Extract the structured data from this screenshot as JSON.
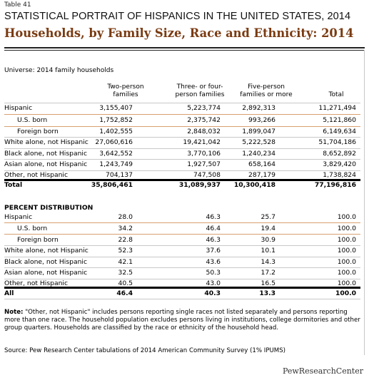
{
  "table_number": "Table 41",
  "supertitle": "STATISTICAL PORTRAIT OF HISPANICS IN THE UNITED STATES, 2014",
  "title": "Households, by Family Size, Race and Ethnicity: 2014",
  "universe": "Universe: 2014 family households",
  "columns": {
    "c1": [
      "Two-person",
      "families"
    ],
    "c2": [
      "Three- or four-",
      "person families"
    ],
    "c3": [
      "Five-person",
      "families or more"
    ],
    "c4": [
      "Total"
    ]
  },
  "counts": [
    {
      "label": "Hispanic",
      "v": [
        "3,155,407",
        "5,223,774",
        "2,892,313",
        "11,271,494"
      ]
    },
    {
      "label": "U.S. born",
      "v": [
        "1,752,852",
        "2,375,742",
        "993,266",
        "5,121,860"
      ]
    },
    {
      "label": "Foreign born",
      "v": [
        "1,402,555",
        "2,848,032",
        "1,899,047",
        "6,149,634"
      ]
    },
    {
      "label": "White alone, not Hispanic",
      "v": [
        "27,060,616",
        "19,421,042",
        "5,222,528",
        "51,704,186"
      ]
    },
    {
      "label": "Black alone, not Hispanic",
      "v": [
        "3,642,552",
        "3,770,106",
        "1,240,234",
        "8,652,892"
      ]
    },
    {
      "label": "Asian alone, not Hispanic",
      "v": [
        "1,243,749",
        "1,927,507",
        "658,164",
        "3,829,420"
      ]
    },
    {
      "label": "Other, not Hispanic",
      "v": [
        "704,137",
        "747,508",
        "287,179",
        "1,738,824"
      ]
    },
    {
      "label": "Total",
      "v": [
        "35,806,461",
        "31,089,937",
        "10,300,418",
        "77,196,816"
      ]
    }
  ],
  "pct_heading": "PERCENT DISTRIBUTION",
  "pct": [
    {
      "label": "Hispanic",
      "v": [
        "28.0",
        "46.3",
        "25.7",
        "100.0"
      ]
    },
    {
      "label": "U.S. born",
      "v": [
        "34.2",
        "46.4",
        "19.4",
        "100.0"
      ]
    },
    {
      "label": "Foreign born",
      "v": [
        "22.8",
        "46.3",
        "30.9",
        "100.0"
      ]
    },
    {
      "label": "White alone, not Hispanic",
      "v": [
        "52.3",
        "37.6",
        "10.1",
        "100.0"
      ]
    },
    {
      "label": "Black alone, not Hispanic",
      "v": [
        "42.1",
        "43.6",
        "14.3",
        "100.0"
      ]
    },
    {
      "label": "Asian alone, not Hispanic",
      "v": [
        "32.5",
        "50.3",
        "17.2",
        "100.0"
      ]
    },
    {
      "label": "Other, not Hispanic",
      "v": [
        "40.5",
        "43.0",
        "16.5",
        "100.0"
      ]
    },
    {
      "label": "All",
      "v": [
        "46.4",
        "40.3",
        "13.3",
        "100.0"
      ]
    }
  ],
  "note_label": "Note:",
  "note": " \"Other, not Hispanic\" includes persons reporting single races not listed separately and persons reporting more than one race. The household population excludes persons living in institutions, college dormitories and other group quarters. Households are classified by the race or ethnicity of the household head.",
  "source": "Source: Pew Research Center tabulations of 2014 American Community Survey (1% IPUMS)",
  "logo": "PewResearchCenter",
  "colors": {
    "title": "#7a3b12",
    "subrow_line": "#d8a070",
    "rule": "#000000"
  }
}
